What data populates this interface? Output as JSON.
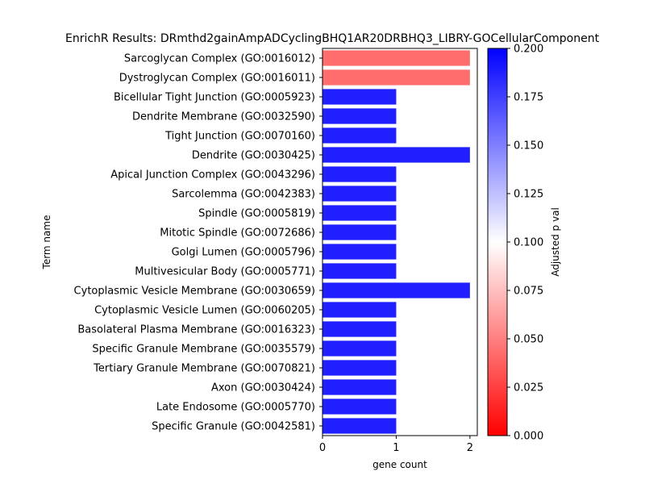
{
  "chart_data": {
    "type": "bar",
    "orientation": "horizontal",
    "title": "EnrichR Results: DRmthd2gainAmpADCyclingBHQ1AR20DRBHQ3_LIBRY-GOCellularComponent",
    "xlabel": "gene count",
    "ylabel": "Term name",
    "xlim": [
      0,
      2.1
    ],
    "xticks": [
      "0",
      "1",
      "2"
    ],
    "categories": [
      "Sarcoglycan Complex (GO:0016012)",
      "Dystroglycan Complex (GO:0016011)",
      "Bicellular Tight Junction (GO:0005923)",
      "Dendrite Membrane (GO:0032590)",
      "Tight Junction (GO:0070160)",
      "Dendrite (GO:0030425)",
      "Apical Junction Complex (GO:0043296)",
      "Sarcolemma (GO:0042383)",
      "Spindle (GO:0005819)",
      "Mitotic Spindle (GO:0072686)",
      "Golgi Lumen (GO:0005796)",
      "Multivesicular Body (GO:0005771)",
      "Cytoplasmic Vesicle Membrane (GO:0030659)",
      "Cytoplasmic Vesicle Lumen (GO:0060205)",
      "Basolateral Plasma Membrane (GO:0016323)",
      "Specific Granule Membrane (GO:0035579)",
      "Tertiary Granule Membrane (GO:0070821)",
      "Axon (GO:0030424)",
      "Late Endosome (GO:0005770)",
      "Specific Granule (GO:0042581)"
    ],
    "values": [
      2,
      2,
      1,
      1,
      1,
      2,
      1,
      1,
      1,
      1,
      1,
      1,
      2,
      1,
      1,
      1,
      1,
      1,
      1,
      1
    ],
    "adjusted_p": [
      0.035,
      0.035,
      0.2,
      0.2,
      0.2,
      0.2,
      0.2,
      0.2,
      0.2,
      0.2,
      0.2,
      0.2,
      0.2,
      0.2,
      0.2,
      0.2,
      0.2,
      0.2,
      0.2,
      0.2
    ],
    "colorbar": {
      "label": "Adjusted p val",
      "range": [
        0,
        0.2
      ],
      "ticks": [
        "0.000",
        "0.025",
        "0.050",
        "0.075",
        "0.100",
        "0.125",
        "0.150",
        "0.175",
        "0.200"
      ],
      "colormap": [
        "#ff0000",
        "#ffffff",
        "#0000ff"
      ]
    }
  }
}
